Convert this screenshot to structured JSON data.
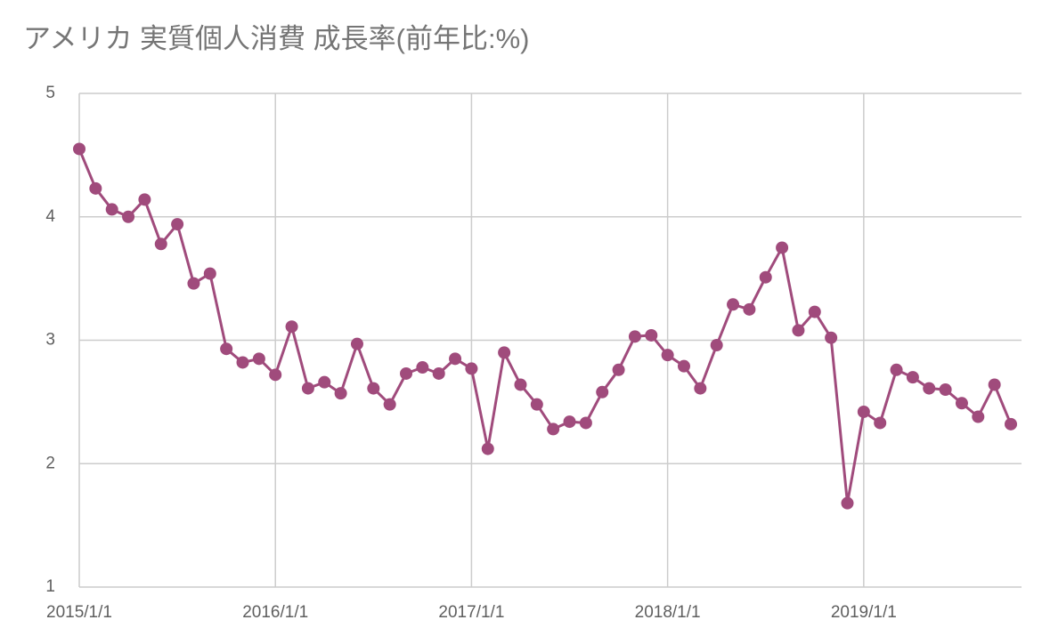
{
  "chart_data": {
    "type": "line",
    "title": "アメリカ 実質個人消費 成長率(前年比:%)",
    "x": [
      "2015/1/1",
      "2015/2/1",
      "2015/3/1",
      "2015/4/1",
      "2015/5/1",
      "2015/6/1",
      "2015/7/1",
      "2015/8/1",
      "2015/9/1",
      "2015/10/1",
      "2015/11/1",
      "2015/12/1",
      "2016/1/1",
      "2016/2/1",
      "2016/3/1",
      "2016/4/1",
      "2016/5/1",
      "2016/6/1",
      "2016/7/1",
      "2016/8/1",
      "2016/9/1",
      "2016/10/1",
      "2016/11/1",
      "2016/12/1",
      "2017/1/1",
      "2017/2/1",
      "2017/3/1",
      "2017/4/1",
      "2017/5/1",
      "2017/6/1",
      "2017/7/1",
      "2017/8/1",
      "2017/9/1",
      "2017/10/1",
      "2017/11/1",
      "2017/12/1",
      "2018/1/1",
      "2018/2/1",
      "2018/3/1",
      "2018/4/1",
      "2018/5/1",
      "2018/6/1",
      "2018/7/1",
      "2018/8/1",
      "2018/9/1",
      "2018/10/1",
      "2018/11/1",
      "2018/12/1",
      "2019/1/1",
      "2019/2/1",
      "2019/3/1",
      "2019/4/1",
      "2019/5/1",
      "2019/6/1",
      "2019/7/1",
      "2019/8/1",
      "2019/9/1",
      "2019/10/1"
    ],
    "series": [
      {
        "name": "実質個人消費",
        "color": "#a04b7c",
        "values": [
          4.55,
          4.23,
          4.06,
          4.0,
          4.14,
          3.78,
          3.94,
          3.46,
          3.54,
          2.93,
          2.82,
          2.85,
          2.72,
          3.11,
          2.61,
          2.66,
          2.57,
          2.97,
          2.61,
          2.48,
          2.73,
          2.78,
          2.73,
          2.85,
          2.77,
          2.12,
          2.9,
          2.64,
          2.48,
          2.28,
          2.34,
          2.33,
          2.58,
          2.76,
          3.03,
          3.04,
          2.88,
          2.79,
          2.61,
          2.96,
          3.29,
          3.25,
          3.51,
          3.75,
          3.08,
          3.23,
          3.02,
          1.68,
          2.42,
          2.33,
          2.76,
          2.7,
          2.61,
          2.6,
          2.49,
          2.38,
          2.64,
          2.32
        ]
      }
    ],
    "xlim": [
      "2015/1/1",
      "2019/10/1"
    ],
    "xticks": [
      "2015/1/1",
      "2016/1/1",
      "2017/1/1",
      "2018/1/1",
      "2019/1/1"
    ],
    "ylim": [
      1,
      5
    ],
    "yticks": [
      1,
      2,
      3,
      4,
      5
    ],
    "grid": true
  }
}
